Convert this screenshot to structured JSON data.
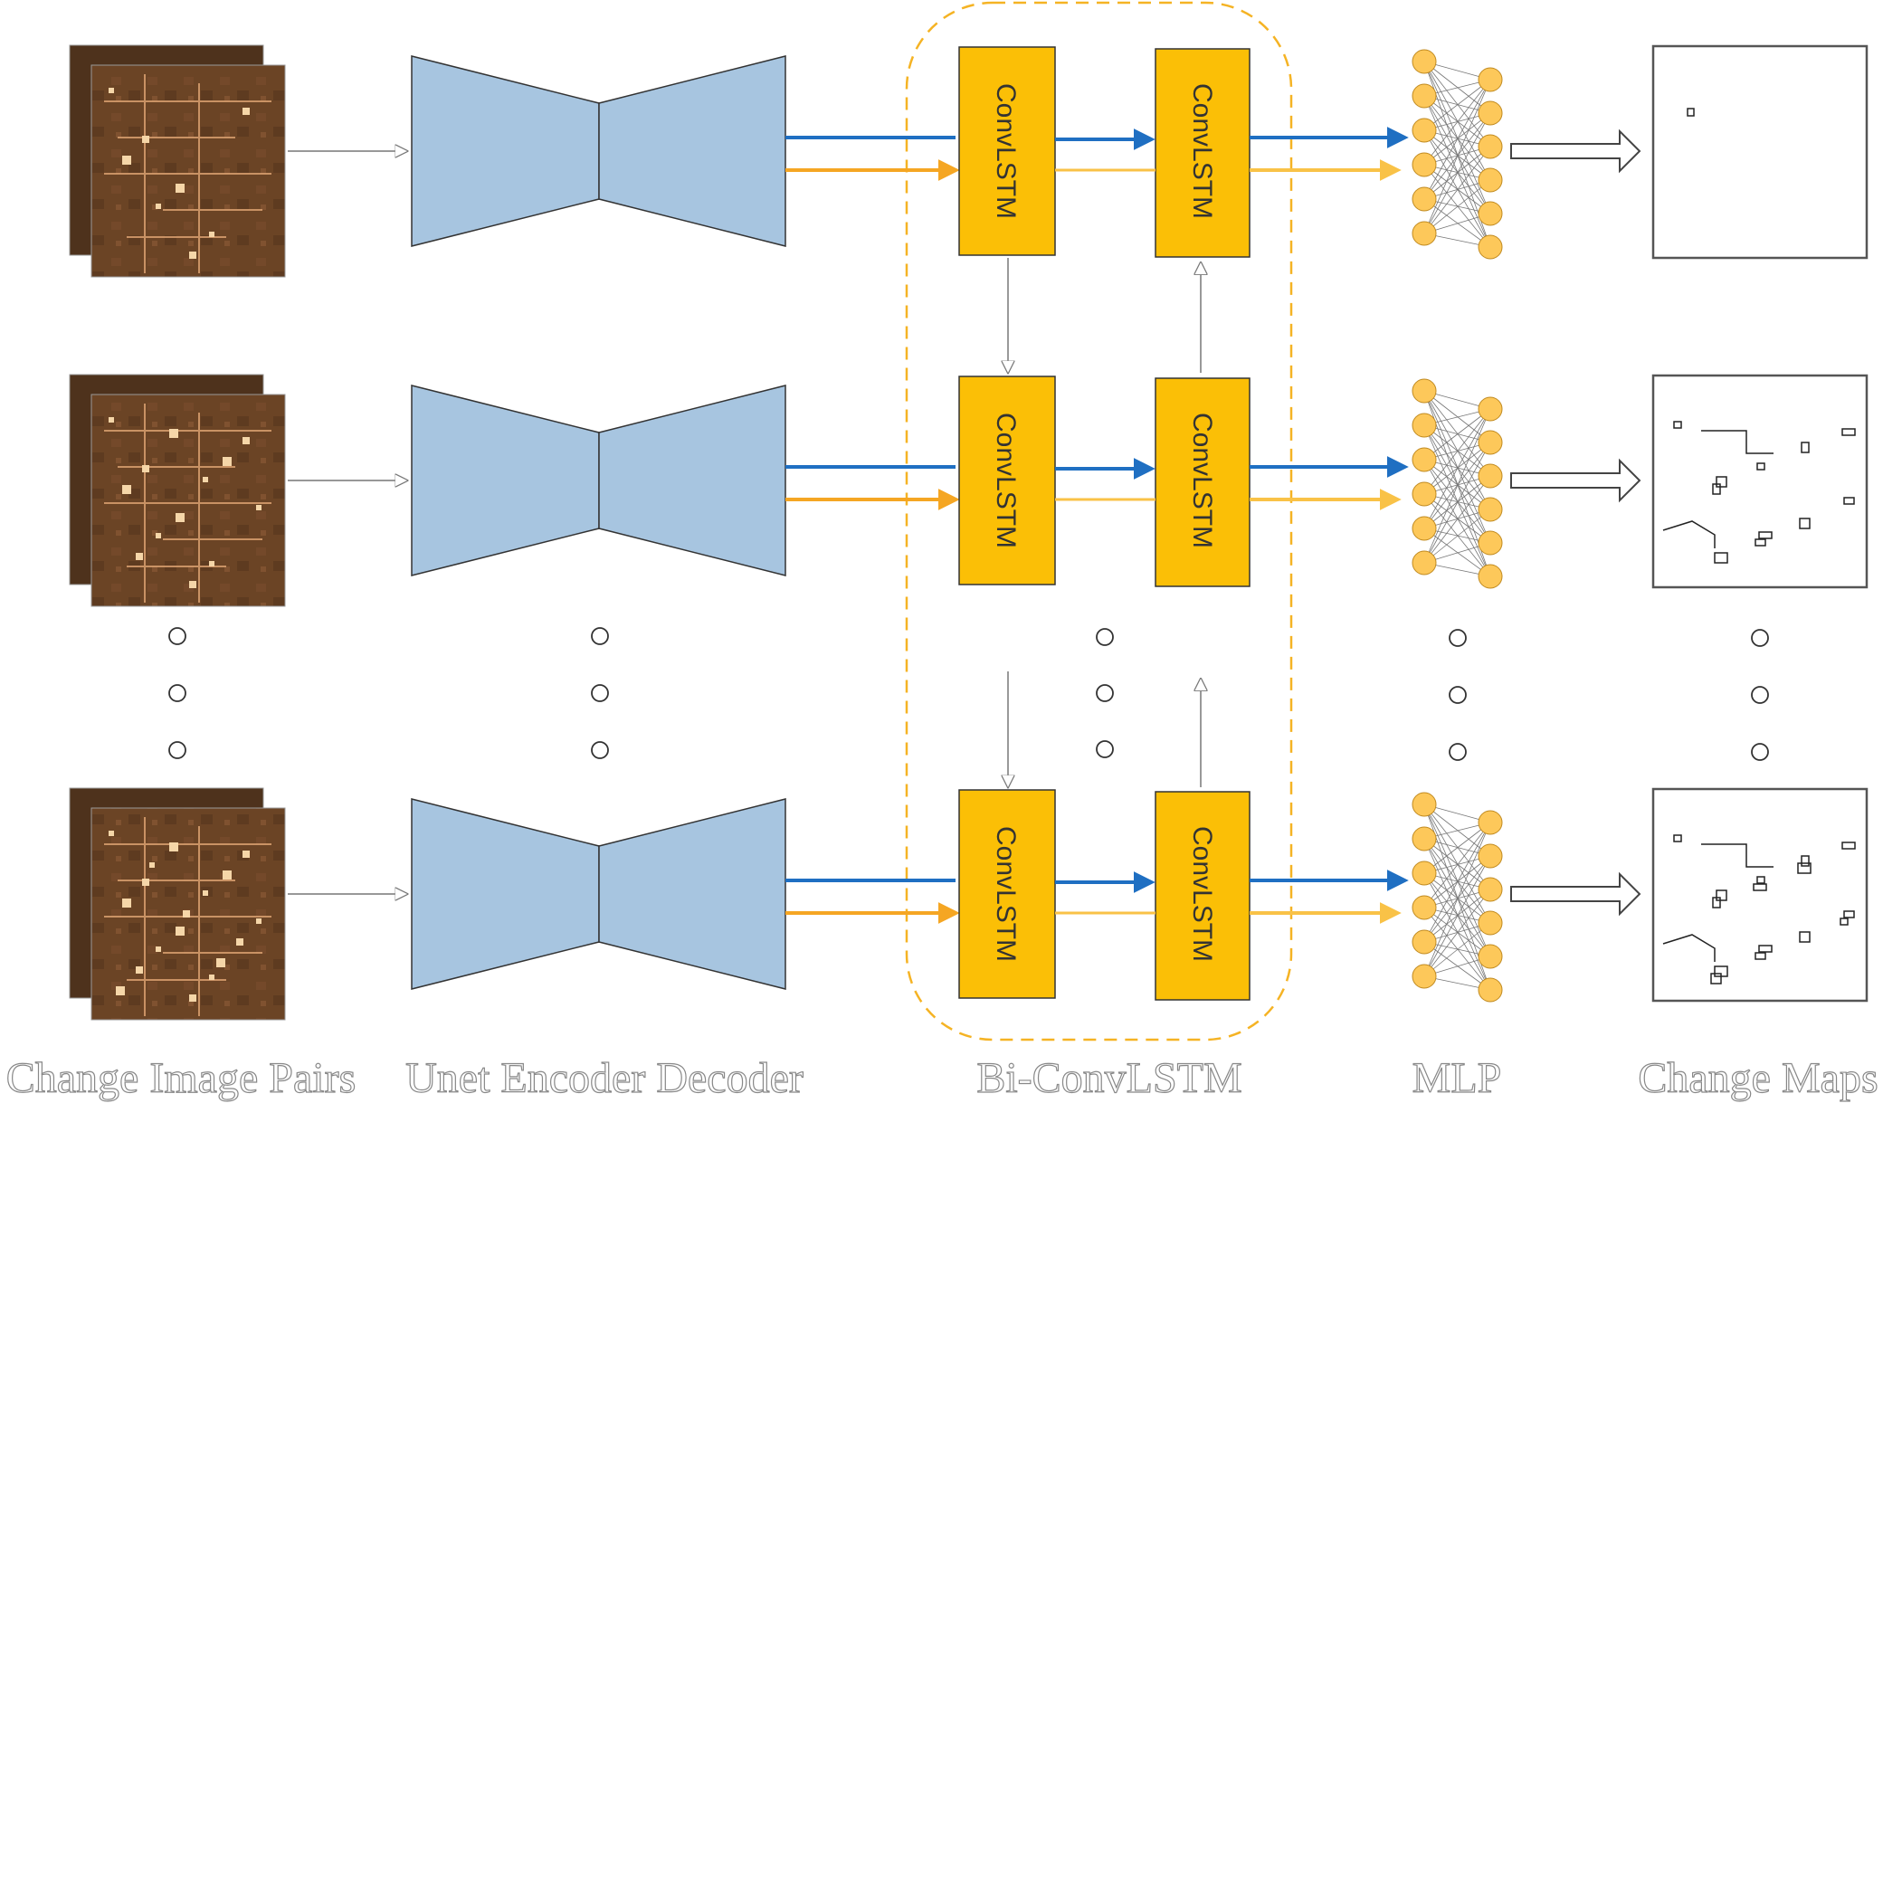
{
  "captions": {
    "inputs": "Change Image Pairs",
    "unet": "Unet Encoder Decoder",
    "biconvlstm": "Bi-ConvLSTM",
    "mlp": "MLP",
    "outputs": "Change Maps"
  },
  "convlstm_label": "ConvLSTM",
  "colors": {
    "unet_fill": "#a7c5e0",
    "convlstm_fill": "#fbbf06",
    "neuron_fill": "#fdc85a",
    "blue_arrow": "#1f6fc2",
    "orange_arrow": "#f5a623",
    "light_orange_arrow": "#f9c247",
    "dashed_border": "#f5b324",
    "satellite_dark": "#5a3a22",
    "satellite_light": "#7a4e2a"
  },
  "rows": 3
}
